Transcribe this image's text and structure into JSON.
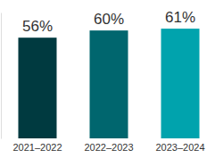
{
  "chart_data": {
    "type": "bar",
    "categories": [
      "2021–2022",
      "2022–2023",
      "2023–2024"
    ],
    "values": [
      56,
      60,
      61
    ],
    "value_labels": [
      "56%",
      "60%",
      "61%"
    ],
    "colors": [
      "#003a40",
      "#00666e",
      "#00a3ad"
    ],
    "ylim": [
      0,
      70
    ],
    "data_labels": true,
    "tick_labels": "x"
  }
}
